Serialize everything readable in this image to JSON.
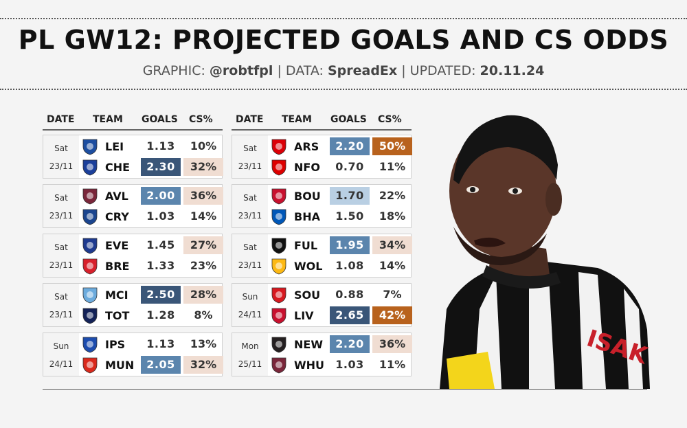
{
  "title": "PL GW12: PROJECTED GOALS AND CS ODDS",
  "subtitle": {
    "graphic_label": "GRAPHIC:",
    "graphic_value": "@robtfpl",
    "data_label": "DATA:",
    "data_value": "SpreadEx",
    "updated_label": "UPDATED:",
    "updated_value": "20.11.24",
    "separator": "|"
  },
  "headers": {
    "date": "DATE",
    "team": "TEAM",
    "goals": "GOALS",
    "cs": "CS%"
  },
  "colors": {
    "goals_dark": "#3a5678",
    "goals_mid": "#5b85ad",
    "goals_light": "#b9cfe3",
    "cs_dark": "#b8621d",
    "cs_light": "#f0ddd2"
  },
  "left_fixtures": [
    {
      "day": "Sat",
      "date": "23/11",
      "home": {
        "team": "LEI",
        "crest": "leicester-crest",
        "color": "#1d4ea0",
        "goals": "1.13",
        "goals_shade": "none",
        "cs": "10%",
        "cs_shade": "none"
      },
      "away": {
        "team": "CHE",
        "crest": "chelsea-crest",
        "color": "#1b3f9a",
        "goals": "2.30",
        "goals_shade": "dark",
        "cs": "32%",
        "cs_shade": "light"
      }
    },
    {
      "day": "Sat",
      "date": "23/11",
      "home": {
        "team": "AVL",
        "crest": "aston-villa-crest",
        "color": "#7a263a",
        "goals": "2.00",
        "goals_shade": "mid",
        "cs": "36%",
        "cs_shade": "light"
      },
      "away": {
        "team": "CRY",
        "crest": "crystal-palace-crest",
        "color": "#1b458f",
        "goals": "1.03",
        "goals_shade": "none",
        "cs": "14%",
        "cs_shade": "none"
      }
    },
    {
      "day": "Sat",
      "date": "23/11",
      "home": {
        "team": "EVE",
        "crest": "everton-crest",
        "color": "#1e3a8f",
        "goals": "1.45",
        "goals_shade": "none",
        "cs": "27%",
        "cs_shade": "light"
      },
      "away": {
        "team": "BRE",
        "crest": "brentford-crest",
        "color": "#d8202b",
        "goals": "1.33",
        "goals_shade": "none",
        "cs": "23%",
        "cs_shade": "none"
      }
    },
    {
      "day": "Sat",
      "date": "23/11",
      "home": {
        "team": "MCI",
        "crest": "manchester-city-crest",
        "color": "#6cabdd",
        "goals": "2.50",
        "goals_shade": "dark",
        "cs": "28%",
        "cs_shade": "light"
      },
      "away": {
        "team": "TOT",
        "crest": "tottenham-crest",
        "color": "#132257",
        "goals": "1.28",
        "goals_shade": "none",
        "cs": "8%",
        "cs_shade": "none"
      }
    },
    {
      "day": "Sun",
      "date": "24/11",
      "home": {
        "team": "IPS",
        "crest": "ipswich-crest",
        "color": "#1c4cae",
        "goals": "1.13",
        "goals_shade": "none",
        "cs": "13%",
        "cs_shade": "none"
      },
      "away": {
        "team": "MUN",
        "crest": "manchester-united-crest",
        "color": "#da291c",
        "goals": "2.05",
        "goals_shade": "mid",
        "cs": "32%",
        "cs_shade": "light"
      }
    }
  ],
  "right_fixtures": [
    {
      "day": "Sat",
      "date": "23/11",
      "home": {
        "team": "ARS",
        "crest": "arsenal-crest",
        "color": "#db0007",
        "goals": "2.20",
        "goals_shade": "mid",
        "cs": "50%",
        "cs_shade": "dark"
      },
      "away": {
        "team": "NFO",
        "crest": "nottingham-forest-crest",
        "color": "#dd0000",
        "goals": "0.70",
        "goals_shade": "none",
        "cs": "11%",
        "cs_shade": "none"
      }
    },
    {
      "day": "Sat",
      "date": "23/11",
      "home": {
        "team": "BOU",
        "crest": "bournemouth-crest",
        "color": "#c8102e",
        "goals": "1.70",
        "goals_shade": "light",
        "cs": "22%",
        "cs_shade": "none"
      },
      "away": {
        "team": "BHA",
        "crest": "brighton-crest",
        "color": "#0057b8",
        "goals": "1.50",
        "goals_shade": "none",
        "cs": "18%",
        "cs_shade": "none"
      }
    },
    {
      "day": "Sat",
      "date": "23/11",
      "home": {
        "team": "FUL",
        "crest": "fulham-crest",
        "color": "#111111",
        "goals": "1.95",
        "goals_shade": "mid",
        "cs": "34%",
        "cs_shade": "light"
      },
      "away": {
        "team": "WOL",
        "crest": "wolves-crest",
        "color": "#fdb913",
        "goals": "1.08",
        "goals_shade": "none",
        "cs": "14%",
        "cs_shade": "none"
      }
    },
    {
      "day": "Sun",
      "date": "24/11",
      "home": {
        "team": "SOU",
        "crest": "southampton-crest",
        "color": "#d71920",
        "goals": "0.88",
        "goals_shade": "none",
        "cs": "7%",
        "cs_shade": "none"
      },
      "away": {
        "team": "LIV",
        "crest": "liverpool-crest",
        "color": "#c8102e",
        "goals": "2.65",
        "goals_shade": "dark",
        "cs": "42%",
        "cs_shade": "dark"
      }
    },
    {
      "day": "Mon",
      "date": "25/11",
      "home": {
        "team": "NEW",
        "crest": "newcastle-crest",
        "color": "#241f20",
        "goals": "2.20",
        "goals_shade": "mid",
        "cs": "36%",
        "cs_shade": "light"
      },
      "away": {
        "team": "WHU",
        "crest": "west-ham-crest",
        "color": "#7a263a",
        "goals": "1.03",
        "goals_shade": "none",
        "cs": "11%",
        "cs_shade": "none"
      }
    }
  ]
}
